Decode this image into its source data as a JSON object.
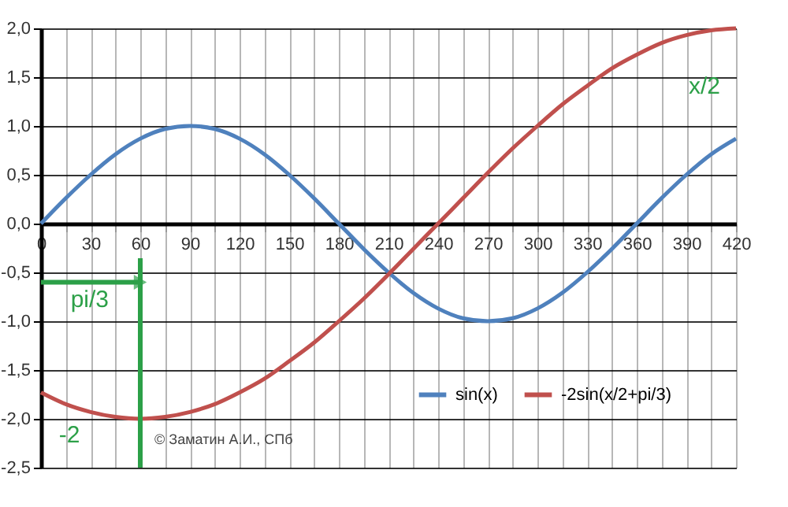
{
  "chart_data": {
    "type": "line",
    "x": [
      0,
      15,
      30,
      45,
      60,
      75,
      90,
      105,
      120,
      135,
      150,
      165,
      180,
      195,
      210,
      225,
      240,
      255,
      270,
      285,
      300,
      315,
      330,
      345,
      360,
      375,
      390,
      405,
      420
    ],
    "series": [
      {
        "name": "sin(x)",
        "color": "#4f81bd",
        "values": [
          0,
          0.26,
          0.5,
          0.71,
          0.87,
          0.97,
          1,
          0.97,
          0.87,
          0.71,
          0.5,
          0.26,
          0,
          -0.26,
          -0.5,
          -0.71,
          -0.87,
          -0.97,
          -1,
          -0.97,
          -0.87,
          -0.71,
          -0.5,
          -0.26,
          0,
          0.26,
          0.5,
          0.71,
          0.87
        ]
      },
      {
        "name": "-2sin(x/2+pi/3)",
        "color": "#c0504d",
        "values": [
          -1.73,
          -1.85,
          -1.93,
          -1.98,
          -2,
          -1.98,
          -1.93,
          -1.85,
          -1.73,
          -1.59,
          -1.41,
          -1.22,
          -1,
          -0.77,
          -0.52,
          -0.26,
          0,
          0.26,
          0.52,
          0.77,
          1,
          1.22,
          1.41,
          1.59,
          1.73,
          1.85,
          1.93,
          1.98,
          2
        ]
      }
    ],
    "xlim": [
      0,
      420
    ],
    "xticks": [
      {
        "value": 0,
        "label": "0"
      },
      {
        "value": 15,
        "label": null
      },
      30,
      {
        "value": 45,
        "label": null
      },
      60,
      {
        "value": 75,
        "label": null
      },
      90,
      {
        "value": 105,
        "label": null
      },
      120,
      {
        "value": 135,
        "label": null
      },
      150,
      {
        "value": 165,
        "label": null
      },
      180,
      {
        "value": 195,
        "label": null
      },
      210,
      {
        "value": 225,
        "label": null
      },
      240,
      {
        "value": 255,
        "label": null
      },
      270,
      {
        "value": 285,
        "label": null
      },
      300,
      {
        "value": 315,
        "label": null
      },
      330,
      {
        "value": 345,
        "label": null
      },
      360,
      {
        "value": 375,
        "label": null
      },
      390,
      {
        "value": 405,
        "label": null
      },
      420
    ],
    "ylim": [
      -2.5,
      2
    ],
    "yticks": [
      {
        "value": -2.5,
        "label": "-2,5"
      },
      {
        "value": -2,
        "label": "-2,0"
      },
      {
        "value": -1.5,
        "label": "-1,5"
      },
      {
        "value": -1,
        "label": "-1,0"
      },
      {
        "value": -0.5,
        "label": "-0,5"
      },
      {
        "value": 0,
        "label": "0,0"
      },
      {
        "value": 0.5,
        "label": "0,5"
      },
      {
        "value": 1,
        "label": "1,0"
      },
      {
        "value": 1.5,
        "label": "1,5"
      },
      {
        "value": 2,
        "label": "2,0"
      }
    ],
    "grid": true,
    "legend": "bottom right",
    "ref_lines": [
      {
        "axis": "x",
        "value": 60,
        "color": "#2ca048"
      }
    ],
    "annotations": [
      {
        "text": "pi/3",
        "x": 60,
        "y": -0.6
      },
      "-2",
      "x/2",
      "© Заматин А.И., СПб"
    ]
  }
}
